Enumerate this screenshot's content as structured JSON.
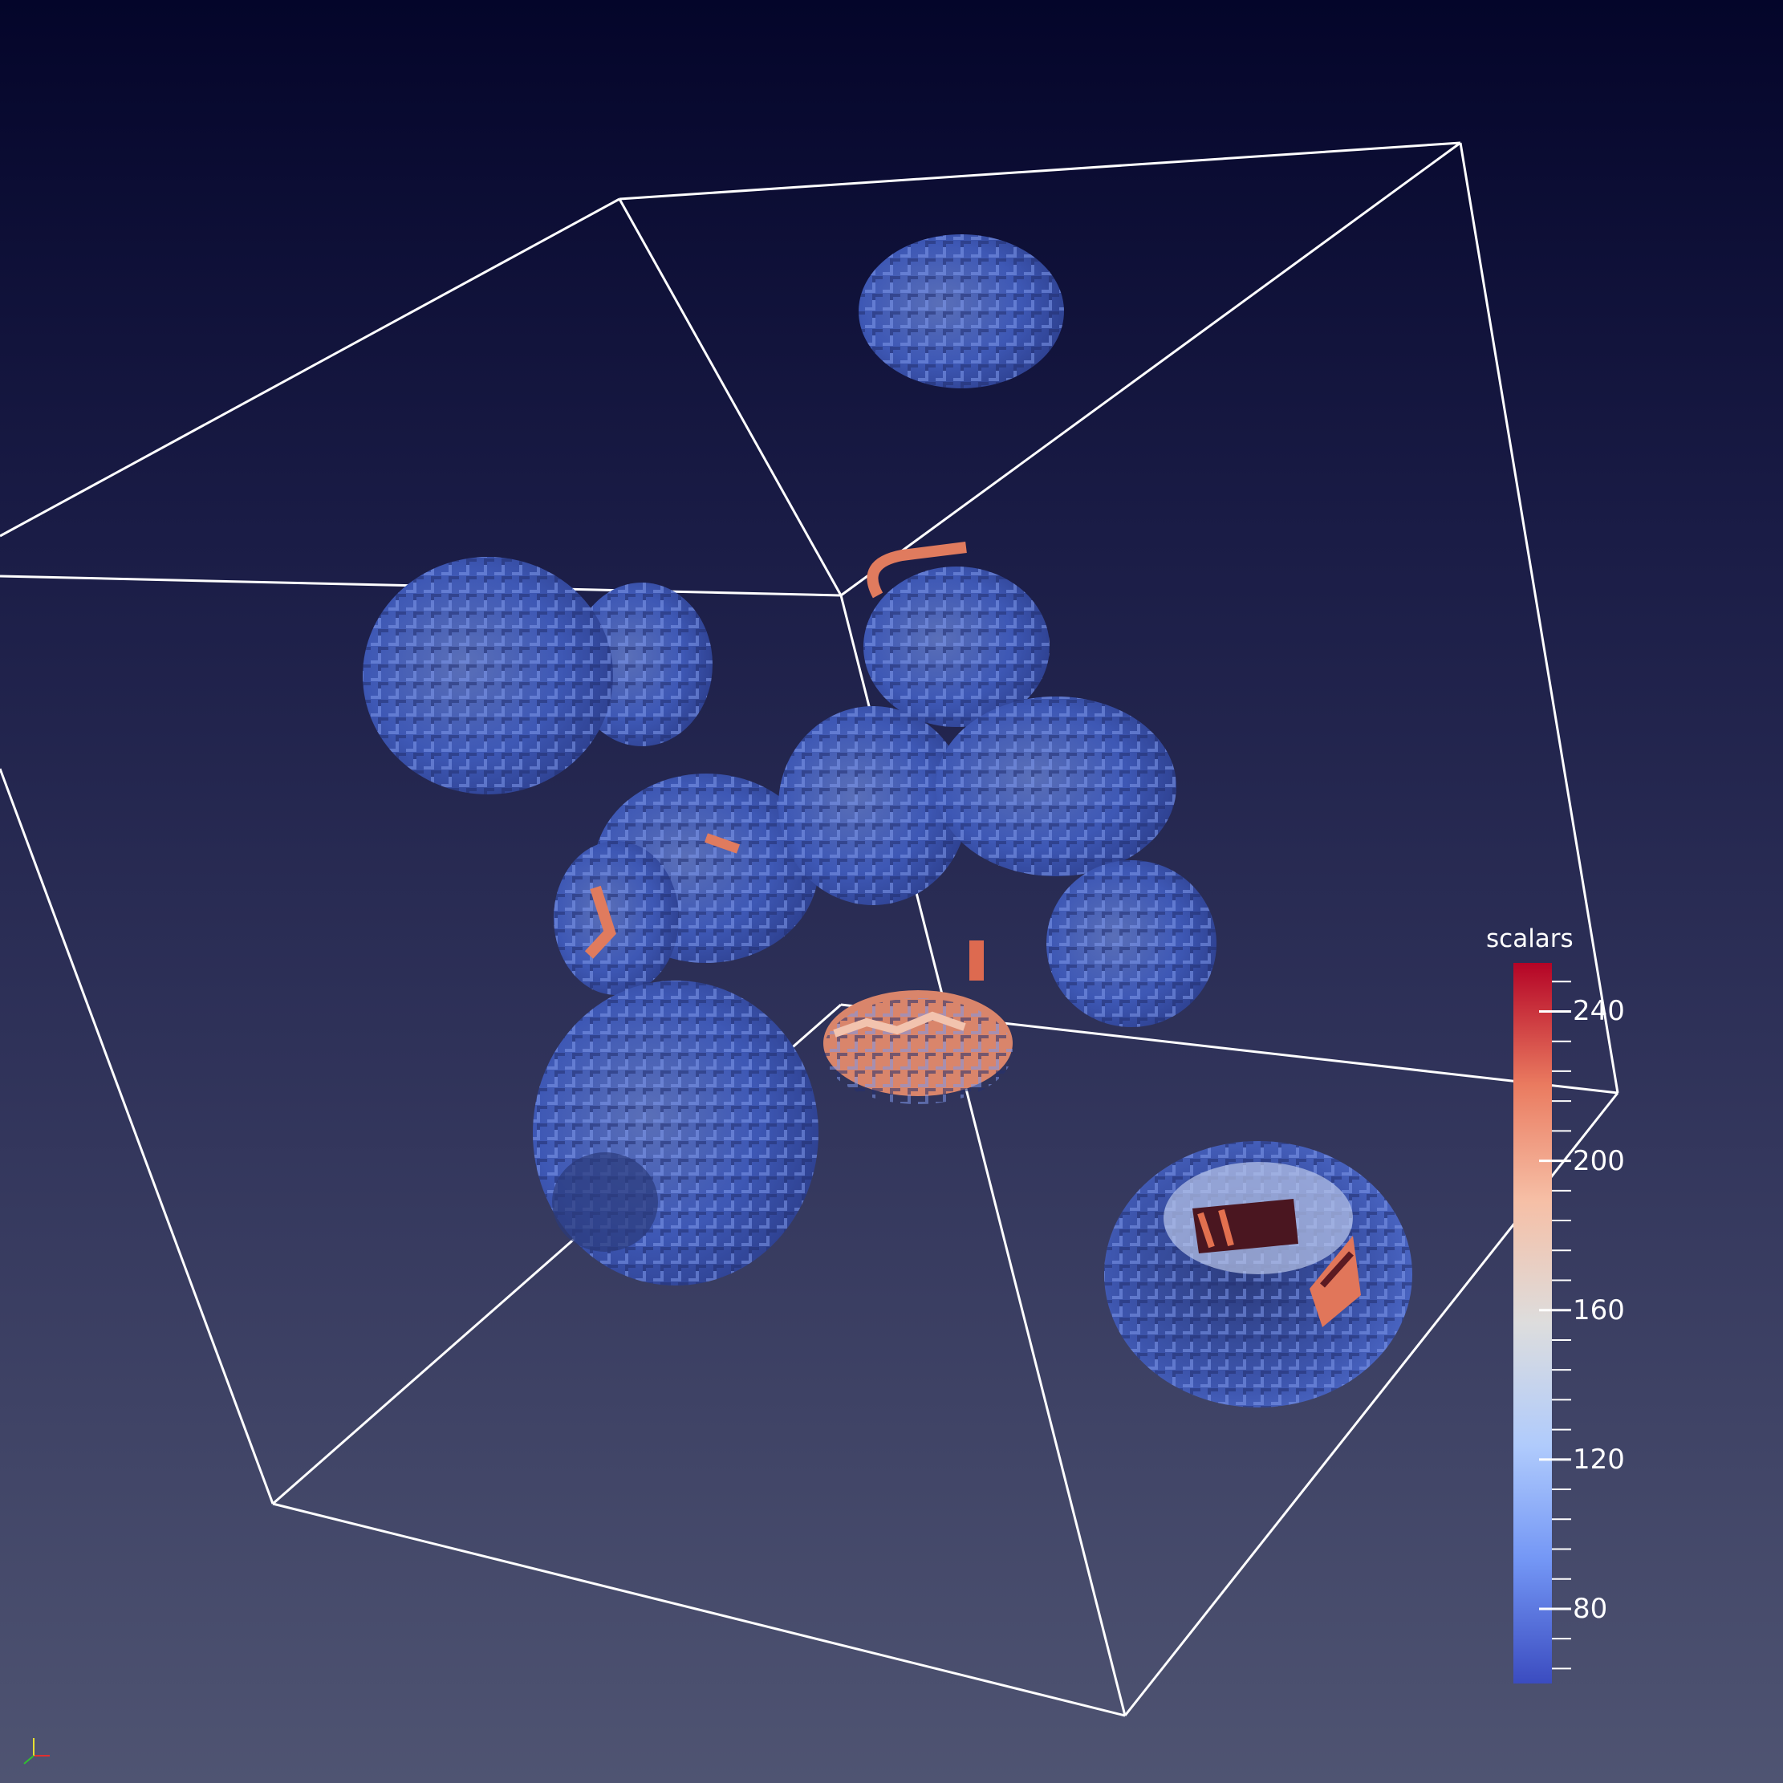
{
  "view": {
    "background_top": "#04052a",
    "background_bottom": "#4f5472",
    "outline_color": "#ffffff"
  },
  "colorbar": {
    "title": "scalars",
    "min": 60,
    "max": 253,
    "ticks": [
      {
        "value": 240,
        "label": "240"
      },
      {
        "value": 200,
        "label": "200"
      },
      {
        "value": 160,
        "label": "160"
      },
      {
        "value": 120,
        "label": "120"
      },
      {
        "value": 80,
        "label": "80"
      }
    ],
    "colormap": [
      "#3b4cc0",
      "#7396f5",
      "#b0cbfc",
      "#dddddd",
      "#f6bfa6",
      "#ea7b60",
      "#b40426"
    ]
  },
  "orientation_axes": {
    "x_color": "#e03030",
    "y_color": "#e8e030",
    "z_color": "#30c030"
  }
}
